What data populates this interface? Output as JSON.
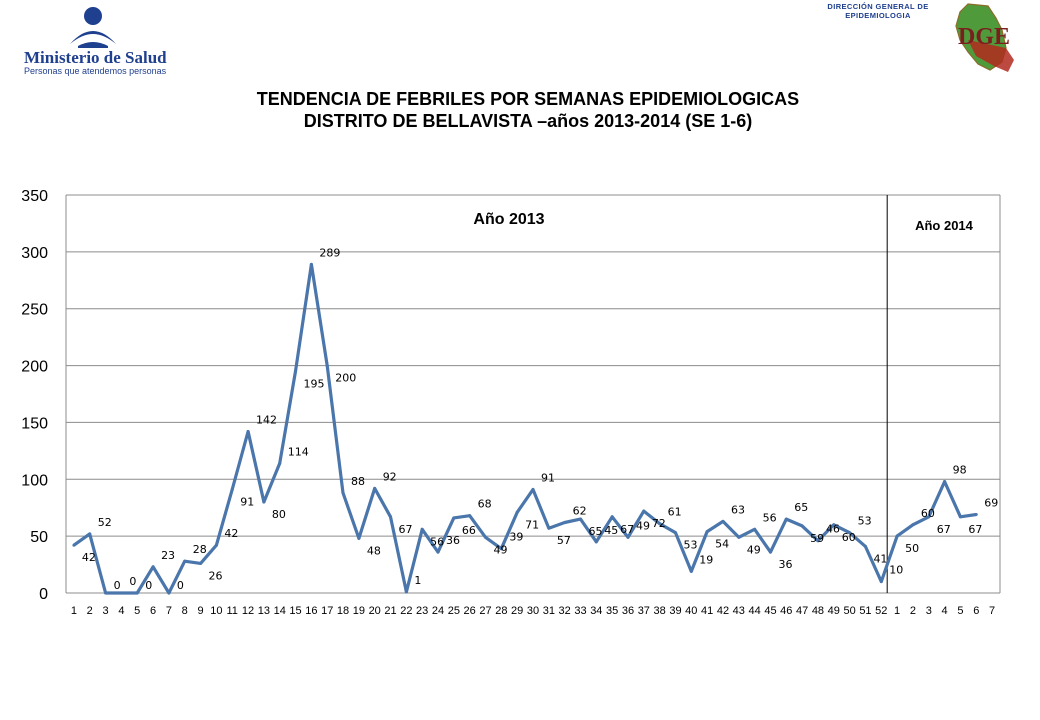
{
  "header": {
    "ministry_name": "Ministerio de Salud",
    "ministry_tagline": "Personas que atendemos personas",
    "dge_label_line1": "DIRECCIÓN GENERAL DE",
    "dge_label_line2": "EPIDEMIOLOGIA",
    "dge_logo_text": "DGE"
  },
  "title": {
    "line1": "TENDENCIA DE FEBRILES POR SEMANAS EPIDEMIOLOGICAS",
    "line2": "DISTRITO DE BELLAVISTA –años 2013-2014 (SE 1-6)"
  },
  "chart_data": {
    "type": "line",
    "series_color": "#4a76ac",
    "ylim": [
      0,
      350
    ],
    "y_ticks": [
      0,
      50,
      100,
      150,
      200,
      250,
      300,
      350
    ],
    "grid": true,
    "x_ticks": [
      "1",
      "2",
      "3",
      "4",
      "5",
      "6",
      "7",
      "8",
      "9",
      "10",
      "11",
      "12",
      "13",
      "14",
      "15",
      "16",
      "17",
      "18",
      "19",
      "20",
      "21",
      "22",
      "23",
      "24",
      "25",
      "26",
      "27",
      "28",
      "29",
      "30",
      "31",
      "32",
      "33",
      "34",
      "35",
      "36",
      "37",
      "38",
      "39",
      "40",
      "41",
      "42",
      "43",
      "44",
      "45",
      "46",
      "47",
      "48",
      "49",
      "50",
      "51",
      "52",
      "1",
      "2",
      "3",
      "4",
      "5",
      "6",
      "7"
    ],
    "period_labels": [
      "Año 2013",
      "Año 2014"
    ],
    "values": [
      42,
      52,
      0,
      0,
      0,
      23,
      0,
      28,
      26,
      42,
      91,
      142,
      80,
      114,
      195,
      289,
      200,
      88,
      48,
      92,
      67,
      1,
      56,
      36,
      66,
      68,
      49,
      39,
      71,
      91,
      57,
      62,
      65,
      45,
      67,
      49,
      72,
      61,
      53,
      19,
      54,
      63,
      49,
      56,
      36,
      65,
      59,
      46,
      60,
      53,
      41,
      10,
      50,
      60,
      67,
      98,
      67,
      69
    ],
    "data_labels": [
      "42",
      "52",
      "0",
      "0",
      "0",
      "23",
      "0",
      "28",
      "26",
      "42",
      "91",
      "142",
      "80",
      "114",
      "195",
      "289",
      "200",
      "88",
      "48",
      "92",
      "67",
      "1",
      "56",
      "36",
      "66",
      "68",
      "49",
      "39",
      "71",
      "91",
      "57",
      "62",
      "65",
      "45",
      "67",
      "49",
      "72",
      "61",
      "53",
      "19",
      "54",
      "63",
      "49",
      "56",
      "36",
      "65",
      "59",
      "46",
      "60",
      "53",
      "41",
      "10",
      "50",
      "60",
      "67",
      "98",
      "67",
      "69"
    ]
  }
}
